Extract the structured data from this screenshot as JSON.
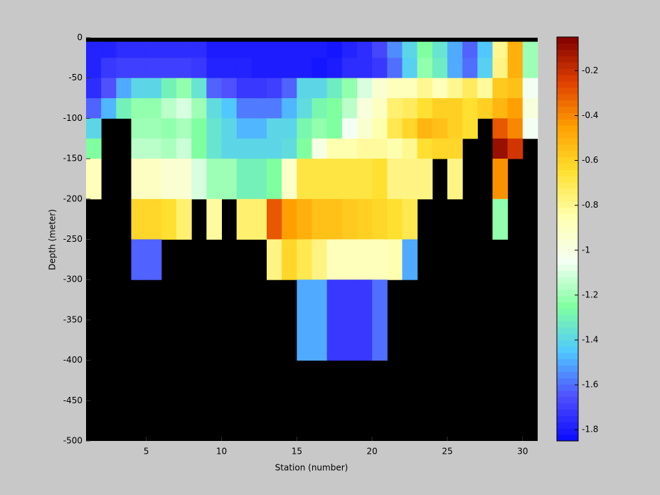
{
  "chart_data": {
    "type": "heatmap",
    "xlabel": "Station (number)",
    "ylabel": "Depth (meter)",
    "x": [
      1,
      2,
      3,
      4,
      5,
      6,
      7,
      8,
      9,
      10,
      11,
      12,
      13,
      14,
      15,
      16,
      17,
      18,
      19,
      20,
      21,
      22,
      23,
      24,
      25,
      26,
      27,
      28,
      29,
      30,
      31
    ],
    "y": [
      0,
      -5,
      -25,
      -50,
      -75,
      -100,
      -125,
      -150,
      -200,
      -250,
      -300,
      -400,
      -500
    ],
    "xlim": [
      1,
      31
    ],
    "ylim": [
      -500,
      0
    ],
    "xticks": [
      5,
      10,
      15,
      20,
      25,
      30
    ],
    "yticks": [
      0,
      -50,
      -100,
      -150,
      -200,
      -250,
      -300,
      -350,
      -400,
      -450,
      -500
    ],
    "clim": [
      -1.85,
      -0.05
    ],
    "cticks": [
      -1.8,
      -1.6,
      -1.4,
      -1.2,
      -1,
      -0.8,
      -0.6,
      -0.4,
      -0.2
    ],
    "colormap": [
      "#0a0aff",
      "#5050ff",
      "#50c8ff",
      "#80ffa0",
      "#f4fff4",
      "#ffffb0",
      "#ffe030",
      "#ffa000",
      "#e04000",
      "#800000"
    ],
    "background": "#000000",
    "values": [
      [
        null,
        null,
        null,
        null,
        null,
        null,
        null,
        null,
        null,
        null,
        null,
        null,
        null,
        null,
        null,
        null,
        null,
        null,
        null,
        null,
        null,
        null,
        null,
        null,
        null,
        null,
        null,
        null,
        null,
        null
      ],
      [
        -1.78,
        -1.78,
        -1.75,
        -1.75,
        -1.75,
        -1.75,
        -1.75,
        -1.75,
        -1.8,
        -1.8,
        -1.8,
        -1.8,
        -1.8,
        -1.8,
        -1.8,
        -1.8,
        -1.82,
        -1.78,
        -1.75,
        -1.68,
        -1.55,
        -1.4,
        -1.25,
        -1.35,
        -1.5,
        -1.62,
        -1.45,
        -0.8,
        -0.5,
        -1.2
      ],
      [
        -1.78,
        -1.72,
        -1.7,
        -1.7,
        -1.7,
        -1.7,
        -1.7,
        -1.72,
        -1.78,
        -1.78,
        -1.78,
        -1.8,
        -1.8,
        -1.8,
        -1.8,
        -1.82,
        -1.8,
        -1.75,
        -1.75,
        -1.72,
        -1.6,
        -1.42,
        -1.22,
        -1.32,
        -1.5,
        -1.6,
        -1.42,
        -0.78,
        -0.5,
        -1.2
      ],
      [
        -1.75,
        -1.65,
        -1.5,
        -1.4,
        -1.4,
        -1.3,
        -1.22,
        -1.35,
        -1.62,
        -1.65,
        -1.72,
        -1.72,
        -1.7,
        -1.62,
        -1.4,
        -1.4,
        -1.32,
        -1.22,
        -1.1,
        -0.95,
        -0.88,
        -0.88,
        -0.8,
        -0.88,
        -0.8,
        -0.72,
        -0.82,
        -0.58,
        -0.55,
        -1.05
      ],
      [
        -1.62,
        -1.48,
        -1.3,
        -1.22,
        -1.22,
        -1.15,
        -1.1,
        -1.2,
        -1.38,
        -1.45,
        -1.58,
        -1.58,
        -1.58,
        -1.48,
        -1.38,
        -1.28,
        -1.25,
        -1.15,
        -0.98,
        -0.9,
        -0.75,
        -0.72,
        -0.65,
        -0.6,
        -0.6,
        -0.65,
        -0.6,
        -0.52,
        -0.45,
        -0.98
      ],
      [
        -1.4,
        null,
        null,
        -1.2,
        -1.2,
        -1.22,
        -1.18,
        -1.25,
        -1.35,
        -1.4,
        -1.48,
        -1.48,
        -1.4,
        -1.4,
        -1.28,
        -1.22,
        -1.25,
        -1.05,
        -0.95,
        -0.85,
        -0.7,
        -0.62,
        -0.52,
        -0.55,
        -0.6,
        -0.65,
        null,
        -0.3,
        -0.4,
        -1.05
      ],
      [
        -1.25,
        null,
        null,
        -1.15,
        -1.15,
        -1.18,
        -1.12,
        -1.25,
        -1.35,
        -1.4,
        -1.4,
        -1.4,
        -1.4,
        -1.38,
        -1.25,
        -1.0,
        -0.85,
        -0.85,
        -0.82,
        -0.82,
        -0.85,
        -0.8,
        -0.65,
        -0.62,
        -0.62,
        null,
        null,
        -0.1,
        -0.22,
        null
      ],
      [
        -0.88,
        null,
        null,
        -0.9,
        -0.9,
        -0.95,
        -0.95,
        -1.1,
        -1.2,
        -1.2,
        -1.3,
        -1.3,
        -1.25,
        -0.92,
        -0.68,
        -0.68,
        -0.68,
        -0.68,
        -0.68,
        -0.65,
        -0.78,
        -0.78,
        -0.78,
        null,
        -0.78,
        null,
        null,
        -0.42,
        null,
        null
      ],
      [
        null,
        null,
        null,
        -0.62,
        -0.62,
        -0.65,
        -0.75,
        null,
        -0.82,
        null,
        -0.75,
        -0.75,
        -0.3,
        -0.45,
        -0.5,
        -0.55,
        -0.55,
        -0.58,
        -0.6,
        -0.62,
        -0.65,
        -0.7,
        null,
        null,
        null,
        null,
        null,
        -1.22,
        null,
        null
      ],
      [
        null,
        null,
        null,
        -1.62,
        -1.62,
        null,
        null,
        null,
        null,
        null,
        null,
        null,
        -0.78,
        -0.62,
        -0.7,
        -0.78,
        -0.88,
        -0.88,
        -0.88,
        -0.88,
        -0.85,
        -1.5,
        null,
        null,
        null,
        null,
        null,
        null,
        null,
        null
      ],
      [
        null,
        null,
        null,
        null,
        null,
        null,
        null,
        null,
        null,
        null,
        null,
        null,
        null,
        null,
        -1.5,
        -1.5,
        -1.72,
        -1.72,
        -1.72,
        -1.6,
        null,
        null,
        null,
        null,
        null,
        null,
        null,
        null,
        null,
        null
      ],
      [
        null,
        null,
        null,
        null,
        null,
        null,
        null,
        null,
        null,
        null,
        null,
        null,
        null,
        null,
        null,
        null,
        null,
        null,
        null,
        null,
        null,
        null,
        null,
        null,
        null,
        null,
        null,
        null,
        null,
        null
      ]
    ]
  }
}
